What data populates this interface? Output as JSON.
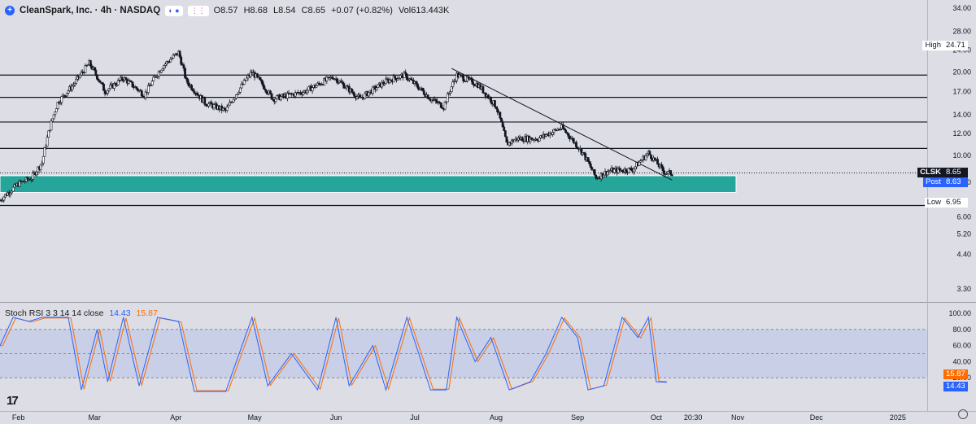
{
  "header": {
    "title": "CleanSpark, Inc. · 4h · NASDAQ",
    "ohlc": [
      "O8.57",
      "H8.68",
      "L8.54",
      "C8.65",
      "+0.07 (+0.82%)",
      "Vol613.443K"
    ]
  },
  "indicator": {
    "name": "Stoch RSI 3 3 14 14 close",
    "k_value": "14.43",
    "d_value": "15.87"
  },
  "price_axis": {
    "ticks": [
      "34.00",
      "28.00",
      "24.00",
      "20.00",
      "17.00",
      "14.00",
      "12.00",
      "10.00",
      "8.00",
      "6.00",
      "5.20",
      "4.40",
      "3.30"
    ],
    "tick_values": [
      34,
      28,
      24,
      20,
      17,
      14,
      12,
      10,
      8,
      6,
      5.2,
      4.4,
      3.3
    ],
    "scale": "log"
  },
  "stoch_axis": {
    "ticks": [
      "100.00",
      "80.00",
      "60.00",
      "40.00",
      "20.00"
    ]
  },
  "time_axis": {
    "labels": [
      "Feb",
      "Mar",
      "Apr",
      "May",
      "Jun",
      "Jul",
      "Aug",
      "Sep",
      "Oct",
      "20:30",
      "Nov",
      "Dec",
      "2025"
    ]
  },
  "price_tags": {
    "high": {
      "label": "High",
      "value": "24.71"
    },
    "symbol": {
      "label": "CLSK",
      "value": "8.65"
    },
    "post": {
      "label": "Post",
      "value": "8.63"
    },
    "low": {
      "label": "Low",
      "value": "6.95"
    },
    "stoch_d": "15.87",
    "stoch_k": "14.43"
  },
  "drawings": {
    "horizontal_levels": [
      19.5,
      16.2,
      13.2,
      10.6,
      6.6
    ],
    "support_zone": [
      7.35,
      8.45
    ],
    "trendline": [
      {
        "date": "2024-07-15",
        "price": 20.6
      },
      {
        "date": "2024-10-07",
        "price": 8.15
      }
    ]
  },
  "colors": {
    "background": "#dcdde5",
    "candle": "#131722",
    "zone": "#26a69a",
    "stoch_k": "#2962ff",
    "stoch_d": "#ff6d00",
    "symbol_tag": "#131722",
    "post_tag": "#2962ff"
  },
  "chart_data": {
    "type": "candlestick",
    "symbol": "CLSK",
    "interval": "4h",
    "price_path": [
      [
        "2024-01-25",
        6.9
      ],
      [
        "2024-02-01",
        7.9
      ],
      [
        "2024-02-06",
        8.3
      ],
      [
        "2024-02-10",
        9.4
      ],
      [
        "2024-02-13",
        12.6
      ],
      [
        "2024-02-16",
        15.5
      ],
      [
        "2024-02-22",
        18.0
      ],
      [
        "2024-02-28",
        21.5
      ],
      [
        "2024-03-05",
        17.0
      ],
      [
        "2024-03-12",
        19.0
      ],
      [
        "2024-03-20",
        16.5
      ],
      [
        "2024-03-27",
        21.0
      ],
      [
        "2024-04-02",
        23.5
      ],
      [
        "2024-04-05",
        18.5
      ],
      [
        "2024-04-12",
        15.5
      ],
      [
        "2024-04-20",
        14.5
      ],
      [
        "2024-04-30",
        20.0
      ],
      [
        "2024-05-08",
        16.0
      ],
      [
        "2024-05-20",
        17.0
      ],
      [
        "2024-05-31",
        19.2
      ],
      [
        "2024-06-10",
        16.0
      ],
      [
        "2024-06-20",
        18.5
      ],
      [
        "2024-06-27",
        19.5
      ],
      [
        "2024-07-07",
        16.0
      ],
      [
        "2024-07-12",
        15.0
      ],
      [
        "2024-07-17",
        19.5
      ],
      [
        "2024-07-25",
        18.0
      ],
      [
        "2024-08-01",
        15.0
      ],
      [
        "2024-08-05",
        11.0
      ],
      [
        "2024-08-09",
        11.5
      ],
      [
        "2024-08-17",
        11.5
      ],
      [
        "2024-08-26",
        12.6
      ],
      [
        "2024-09-03",
        10.2
      ],
      [
        "2024-09-08",
        8.3
      ],
      [
        "2024-09-13",
        8.8
      ],
      [
        "2024-09-22",
        8.9
      ],
      [
        "2024-09-28",
        10.2
      ],
      [
        "2024-10-04",
        8.7
      ],
      [
        "2024-10-07",
        8.6
      ]
    ],
    "stoch_k_path": [
      [
        "2024-01-25",
        60
      ],
      [
        "2024-01-30",
        95
      ],
      [
        "2024-02-05",
        90
      ],
      [
        "2024-02-10",
        95
      ],
      [
        "2024-02-20",
        95
      ],
      [
        "2024-02-25",
        5
      ],
      [
        "2024-03-02",
        80
      ],
      [
        "2024-03-06",
        15
      ],
      [
        "2024-03-12",
        95
      ],
      [
        "2024-03-18",
        10
      ],
      [
        "2024-03-25",
        95
      ],
      [
        "2024-04-02",
        90
      ],
      [
        "2024-04-08",
        3
      ],
      [
        "2024-04-20",
        3
      ],
      [
        "2024-04-30",
        95
      ],
      [
        "2024-05-06",
        10
      ],
      [
        "2024-05-15",
        50
      ],
      [
        "2024-05-25",
        5
      ],
      [
        "2024-06-01",
        95
      ],
      [
        "2024-06-06",
        10
      ],
      [
        "2024-06-15",
        60
      ],
      [
        "2024-06-20",
        5
      ],
      [
        "2024-06-28",
        95
      ],
      [
        "2024-07-07",
        5
      ],
      [
        "2024-07-13",
        5
      ],
      [
        "2024-07-17",
        95
      ],
      [
        "2024-07-24",
        40
      ],
      [
        "2024-07-30",
        70
      ],
      [
        "2024-08-06",
        5
      ],
      [
        "2024-08-14",
        15
      ],
      [
        "2024-08-20",
        50
      ],
      [
        "2024-08-26",
        95
      ],
      [
        "2024-09-01",
        70
      ],
      [
        "2024-09-05",
        5
      ],
      [
        "2024-09-11",
        10
      ],
      [
        "2024-09-18",
        95
      ],
      [
        "2024-09-24",
        70
      ],
      [
        "2024-09-28",
        95
      ],
      [
        "2024-10-01",
        15
      ],
      [
        "2024-10-05",
        14.43
      ]
    ],
    "stoch_d_last": 15.87
  }
}
